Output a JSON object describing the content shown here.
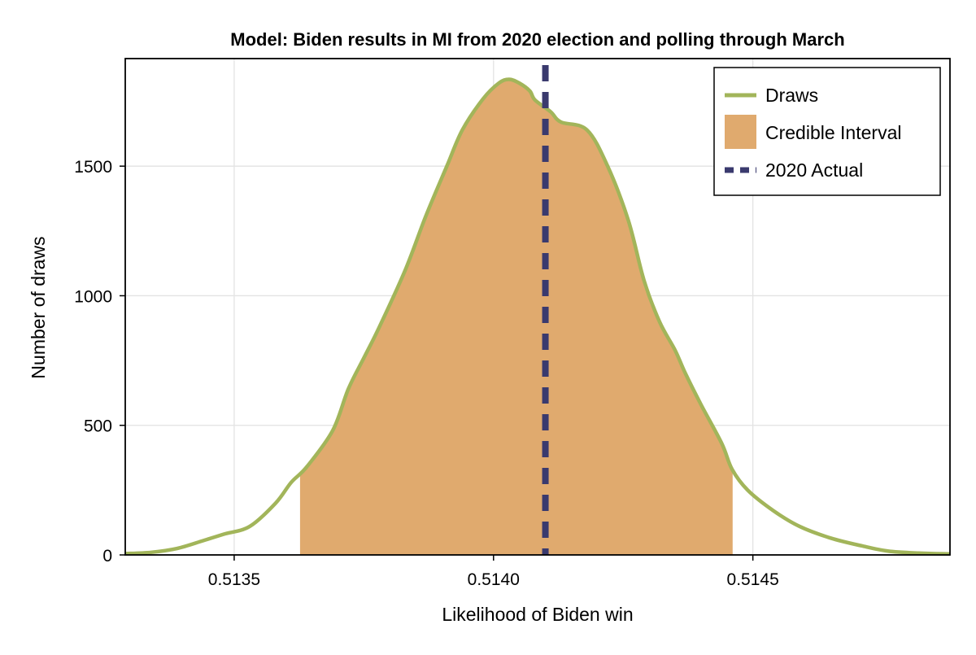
{
  "chart_data": {
    "type": "area",
    "title": "Model: Biden results in MI from 2020 election and polling through March",
    "xlabel": "Likelihood of Biden win",
    "ylabel": "Number of draws",
    "xlim": [
      0.51329,
      0.51488
    ],
    "ylim": [
      0,
      1915
    ],
    "x_ticks": [
      0.5135,
      0.514,
      0.5145
    ],
    "x_tick_labels": [
      "0.5135",
      "0.5140",
      "0.5145"
    ],
    "y_ticks": [
      0,
      500,
      1000,
      1500
    ],
    "y_tick_labels": [
      "0",
      "500",
      "1000",
      "1500"
    ],
    "grid": true,
    "legend_position": "top-right",
    "series": [
      {
        "name": "Draws",
        "kind": "density-line",
        "color": "#a2b55a",
        "x": [
          0.51329,
          0.51334,
          0.51339,
          0.51344,
          0.51348,
          0.51353,
          0.51358,
          0.51361,
          0.51364,
          0.51369,
          0.51372,
          0.51375,
          0.51378,
          0.51383,
          0.51387,
          0.51391,
          0.51394,
          0.51398,
          0.51401,
          0.51403,
          0.51405,
          0.51407,
          0.51408,
          0.51411,
          0.51413,
          0.51418,
          0.51422,
          0.51426,
          0.51429,
          0.51432,
          0.51435,
          0.51437,
          0.5144,
          0.51444,
          0.51446,
          0.51449,
          0.51454,
          0.51459,
          0.51465,
          0.51471,
          0.51476,
          0.51482,
          0.51488
        ],
        "y": [
          5,
          10,
          25,
          55,
          80,
          110,
          200,
          280,
          340,
          480,
          640,
          760,
          880,
          1100,
          1310,
          1500,
          1640,
          1760,
          1820,
          1835,
          1820,
          1790,
          1755,
          1710,
          1670,
          1640,
          1500,
          1290,
          1060,
          900,
          790,
          700,
          580,
          430,
          330,
          250,
          170,
          110,
          65,
          35,
          15,
          7,
          4
        ]
      },
      {
        "name": "Credible Interval",
        "kind": "shaded-region",
        "color": "#e0aa6e",
        "x_range": [
          0.513627,
          0.514461
        ]
      },
      {
        "name": "2020 Actual",
        "kind": "vertical-line",
        "color": "#3a3a6e",
        "x": 0.5141
      }
    ]
  }
}
